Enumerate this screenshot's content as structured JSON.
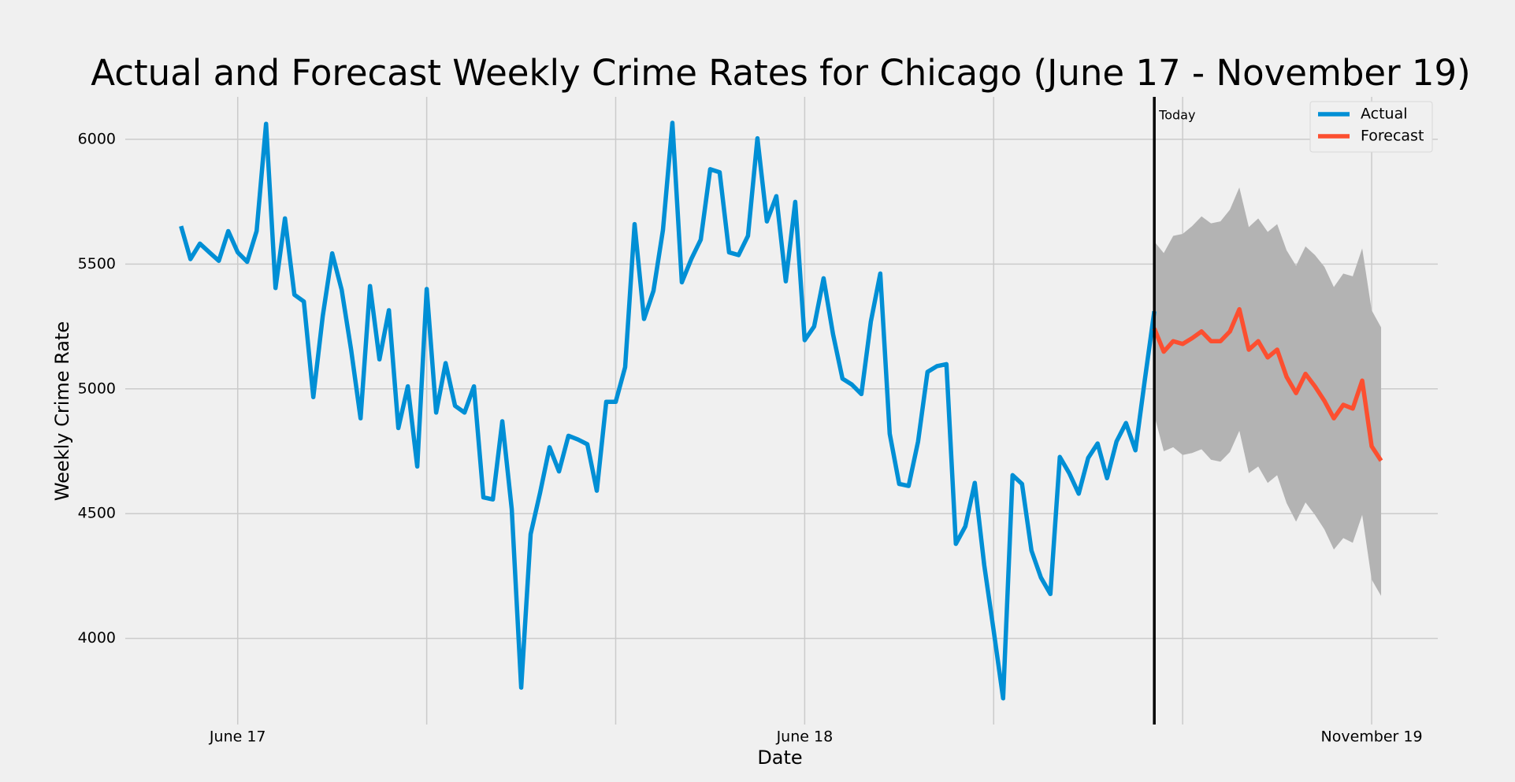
{
  "chart_data": {
    "type": "line",
    "title": "Actual and Forecast Weekly Crime Rates for Chicago (June 17 - November 19)",
    "xlabel": "Date",
    "ylabel": "Weekly Crime Rate",
    "x": [
      0,
      1,
      2,
      3,
      4,
      5,
      6,
      7,
      8,
      9,
      10,
      11,
      12,
      13,
      14,
      15,
      16,
      17,
      18,
      19,
      20,
      21,
      22,
      23,
      24,
      25,
      26,
      27,
      28,
      29,
      30,
      31,
      32,
      33,
      34,
      35,
      36,
      37,
      38,
      39,
      40,
      41,
      42,
      43,
      44,
      45,
      46,
      47,
      48,
      49,
      50,
      51,
      52,
      53,
      54,
      55,
      56,
      57,
      58,
      59,
      60,
      61,
      62,
      63,
      64,
      65,
      66,
      67,
      68,
      69,
      70,
      71,
      72,
      73,
      74,
      75,
      76,
      77,
      78,
      79,
      80,
      81,
      82,
      83,
      84,
      85,
      86,
      87,
      88,
      89,
      90,
      91,
      92,
      93,
      94,
      95,
      96,
      97,
      98,
      99,
      100,
      101,
      102,
      103,
      104,
      105,
      106,
      107,
      108,
      109,
      110,
      111,
      112,
      113,
      114,
      115,
      116,
      117,
      118,
      119,
      120,
      121,
      122,
      123,
      124,
      125,
      126,
      127
    ],
    "series": [
      {
        "name": "Actual",
        "color": "#008fd5",
        "values": [
          5652,
          5520,
          5582,
          5547,
          5513,
          5632,
          5547,
          5509,
          5632,
          6062,
          5404,
          5683,
          5377,
          5350,
          4967,
          5292,
          5543,
          5397,
          5157,
          4882,
          5412,
          5118,
          5315,
          4843,
          5010,
          4689,
          5400,
          4905,
          5103,
          4932,
          4905,
          5010,
          4565,
          4557,
          4870,
          4518,
          3803,
          4418,
          4584,
          4766,
          4669,
          4812,
          4797,
          4778,
          4592,
          4948,
          4948,
          5087,
          5660,
          5280,
          5393,
          5636,
          6066,
          5427,
          5520,
          5598,
          5880,
          5868,
          5547,
          5536,
          5613,
          6004,
          5671,
          5772,
          5431,
          5749,
          5195,
          5250,
          5443,
          5219,
          5041,
          5017,
          4979,
          5269,
          5462,
          4820,
          4619,
          4611,
          4789,
          5068,
          5091,
          5099,
          4379,
          4449,
          4623,
          4294,
          4031,
          3760,
          4654,
          4619,
          4352,
          4244,
          4178,
          4727,
          4662,
          4580,
          4723,
          4781,
          4642,
          4789,
          4863,
          4754,
          5037,
          5311,
          null,
          null,
          null,
          null,
          null,
          null,
          null,
          null,
          null,
          null,
          null,
          null,
          null,
          null,
          null,
          null,
          null,
          null,
          null,
          null,
          null,
          null,
          null,
          null
        ]
      },
      {
        "name": "Forecast",
        "color": "#fc4f30",
        "band_color": "#b3b3b3",
        "values": [
          null,
          null,
          null,
          null,
          null,
          null,
          null,
          null,
          null,
          null,
          null,
          null,
          null,
          null,
          null,
          null,
          null,
          null,
          null,
          null,
          null,
          null,
          null,
          null,
          null,
          null,
          null,
          null,
          null,
          null,
          null,
          null,
          null,
          null,
          null,
          null,
          null,
          null,
          null,
          null,
          null,
          null,
          null,
          null,
          null,
          null,
          null,
          null,
          null,
          null,
          null,
          null,
          null,
          null,
          null,
          null,
          null,
          null,
          null,
          null,
          null,
          null,
          null,
          null,
          null,
          null,
          null,
          null,
          null,
          null,
          null,
          null,
          null,
          null,
          null,
          null,
          null,
          null,
          null,
          null,
          null,
          null,
          null,
          null,
          null,
          null,
          null,
          null,
          null,
          null,
          null,
          null,
          null,
          null,
          null,
          null,
          null,
          null,
          null,
          null,
          null,
          null,
          null,
          5242,
          5149,
          5191,
          5180,
          5203,
          5230,
          5191,
          5191,
          5230,
          5319,
          5157,
          5191,
          5126,
          5157,
          5048,
          4983,
          5060,
          5010,
          4952,
          4882,
          4936,
          4921,
          5033,
          4770,
          4712
        ],
        "lower": [
          null,
          null,
          null,
          null,
          null,
          null,
          null,
          null,
          null,
          null,
          null,
          null,
          null,
          null,
          null,
          null,
          null,
          null,
          null,
          null,
          null,
          null,
          null,
          null,
          null,
          null,
          null,
          null,
          null,
          null,
          null,
          null,
          null,
          null,
          null,
          null,
          null,
          null,
          null,
          null,
          null,
          null,
          null,
          null,
          null,
          null,
          null,
          null,
          null,
          null,
          null,
          null,
          null,
          null,
          null,
          null,
          null,
          null,
          null,
          null,
          null,
          null,
          null,
          null,
          null,
          null,
          null,
          null,
          null,
          null,
          null,
          null,
          null,
          null,
          null,
          null,
          null,
          null,
          null,
          null,
          null,
          null,
          null,
          null,
          null,
          null,
          null,
          null,
          null,
          null,
          null,
          null,
          null,
          null,
          null,
          null,
          null,
          null,
          null,
          null,
          null,
          null,
          null,
          4894,
          4750,
          4766,
          4735,
          4743,
          4758,
          4716,
          4708,
          4747,
          4832,
          4662,
          4689,
          4623,
          4654,
          4542,
          4468,
          4545,
          4495,
          4437,
          4356,
          4402,
          4383,
          4495,
          4236,
          4170
        ],
        "upper": [
          null,
          null,
          null,
          null,
          null,
          null,
          null,
          null,
          null,
          null,
          null,
          null,
          null,
          null,
          null,
          null,
          null,
          null,
          null,
          null,
          null,
          null,
          null,
          null,
          null,
          null,
          null,
          null,
          null,
          null,
          null,
          null,
          null,
          null,
          null,
          null,
          null,
          null,
          null,
          null,
          null,
          null,
          null,
          null,
          null,
          null,
          null,
          null,
          null,
          null,
          null,
          null,
          null,
          null,
          null,
          null,
          null,
          null,
          null,
          null,
          null,
          null,
          null,
          null,
          null,
          null,
          null,
          null,
          null,
          null,
          null,
          null,
          null,
          null,
          null,
          null,
          null,
          null,
          null,
          null,
          null,
          null,
          null,
          null,
          null,
          null,
          null,
          null,
          null,
          null,
          null,
          null,
          null,
          null,
          null,
          null,
          null,
          null,
          null,
          null,
          null,
          null,
          null,
          5590,
          5544,
          5613,
          5621,
          5652,
          5691,
          5663,
          5671,
          5718,
          5807,
          5648,
          5683,
          5629,
          5660,
          5555,
          5493,
          5571,
          5536,
          5489,
          5408,
          5462,
          5451,
          5563,
          5315,
          5246
        ]
      }
    ],
    "annotation": {
      "x": 103,
      "label": "Today",
      "color": "#000000"
    },
    "xlim": [
      -5.9,
      133
    ],
    "ylim": [
      3655,
      6170
    ],
    "xticks": [
      {
        "value": 6,
        "label": "June 17"
      },
      {
        "value": 26,
        "label": null
      },
      {
        "value": 46,
        "label": null
      },
      {
        "value": 66,
        "label": "June 18"
      },
      {
        "value": 86,
        "label": null
      },
      {
        "value": 106,
        "label": null
      },
      {
        "value": 126,
        "label": "November 19"
      }
    ],
    "yticks": [
      4000,
      4500,
      5000,
      5500,
      6000
    ],
    "grid": true,
    "legend": "upper right"
  }
}
